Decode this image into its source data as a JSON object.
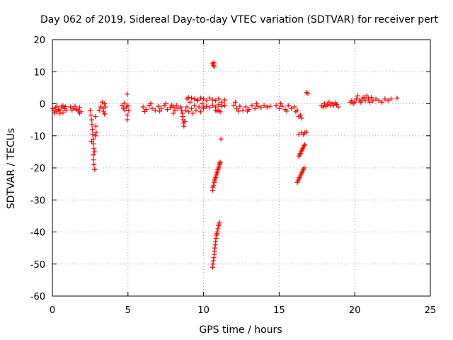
{
  "chart_data": {
    "type": "scatter",
    "title": "Day 062 of 2019, Sidereal Day-to-day VTEC variation (SDTVAR) for receiver pert",
    "xlabel": "GPS time / hours",
    "ylabel": "SDTVAR / TECUs",
    "xlim": [
      0,
      25
    ],
    "ylim": [
      -60,
      20
    ],
    "xticks": [
      0,
      5,
      10,
      15,
      20,
      25
    ],
    "yticks": [
      -60,
      -50,
      -40,
      -30,
      -20,
      -10,
      0,
      10,
      20
    ],
    "grid": true,
    "marker": "+",
    "color": "#ff0000",
    "series": [
      {
        "name": "SDTVAR",
        "points": [
          [
            0.0,
            -1.5
          ],
          [
            0.1,
            -2.0
          ],
          [
            0.2,
            -1.2
          ],
          [
            0.3,
            -2.5
          ],
          [
            0.4,
            -1.8
          ],
          [
            0.5,
            -2.2
          ],
          [
            0.6,
            -1.0
          ],
          [
            0.7,
            -2.8
          ],
          [
            0.8,
            -1.5
          ],
          [
            0.9,
            -2.0
          ],
          [
            0.3,
            -0.8
          ],
          [
            0.5,
            -3.0
          ],
          [
            0.7,
            -0.6
          ],
          [
            0.15,
            -2.9
          ],
          [
            0.85,
            -0.9
          ],
          [
            1.2,
            -1.0
          ],
          [
            1.3,
            -2.0
          ],
          [
            1.4,
            -1.5
          ],
          [
            1.5,
            -0.8
          ],
          [
            1.6,
            -1.8
          ],
          [
            1.7,
            -2.2
          ],
          [
            1.8,
            -1.2
          ],
          [
            1.9,
            -2.5
          ],
          [
            1.8,
            -3.0
          ],
          [
            2.5,
            -2.0
          ],
          [
            2.55,
            -3.5
          ],
          [
            2.6,
            -5.0
          ],
          [
            2.62,
            -6.5
          ],
          [
            2.65,
            -8.0
          ],
          [
            2.67,
            -9.5
          ],
          [
            2.7,
            -11.0
          ],
          [
            2.72,
            -12.5
          ],
          [
            2.75,
            -14.0
          ],
          [
            2.7,
            -16.0
          ],
          [
            2.72,
            -17.5
          ],
          [
            2.75,
            -19.0
          ],
          [
            2.8,
            -20.5
          ],
          [
            2.78,
            -15.0
          ],
          [
            2.6,
            -11.8
          ],
          [
            2.85,
            -10.0
          ],
          [
            2.9,
            -9.0
          ],
          [
            2.88,
            -7.0
          ],
          [
            2.85,
            -4.0
          ],
          [
            3.1,
            -2.0
          ],
          [
            3.2,
            -1.0
          ],
          [
            3.3,
            0.5
          ],
          [
            3.35,
            -1.5
          ],
          [
            3.4,
            -2.5
          ],
          [
            3.45,
            0.0
          ],
          [
            3.5,
            -1.0
          ],
          [
            3.45,
            -3.2
          ],
          [
            4.6,
            -0.5
          ],
          [
            4.7,
            -1.5
          ],
          [
            4.8,
            -2.0
          ],
          [
            4.9,
            -1.0
          ],
          [
            5.0,
            -0.5
          ],
          [
            5.05,
            -2.2
          ],
          [
            4.75,
            0.2
          ],
          [
            4.95,
            3.0
          ],
          [
            4.95,
            -3.5
          ],
          [
            4.95,
            -5.0
          ],
          [
            6.0,
            -1.0
          ],
          [
            6.2,
            -1.8
          ],
          [
            6.4,
            -0.5
          ],
          [
            6.6,
            -1.5
          ],
          [
            6.8,
            -2.0
          ],
          [
            7.0,
            -0.8
          ],
          [
            7.2,
            -1.5
          ],
          [
            7.4,
            -0.6
          ],
          [
            7.6,
            -1.8
          ],
          [
            7.8,
            -1.2
          ],
          [
            6.1,
            -2.4
          ],
          [
            6.5,
            0.0
          ],
          [
            7.1,
            -2.3
          ],
          [
            7.5,
            0.0
          ],
          [
            7.9,
            -0.4
          ],
          [
            8.0,
            -1.0
          ],
          [
            8.1,
            -2.0
          ],
          [
            8.2,
            -0.5
          ],
          [
            8.3,
            -1.5
          ],
          [
            8.0,
            -3.0
          ],
          [
            8.5,
            -1.0
          ],
          [
            8.55,
            -2.0
          ],
          [
            8.6,
            -3.0
          ],
          [
            8.62,
            -4.0
          ],
          [
            8.65,
            -5.0
          ],
          [
            8.67,
            -6.0
          ],
          [
            8.7,
            -7.0
          ],
          [
            8.75,
            -5.5
          ],
          [
            8.8,
            -2.0
          ],
          [
            8.9,
            -1.0
          ],
          [
            9.0,
            -2.5
          ],
          [
            9.1,
            0.5
          ],
          [
            9.2,
            -1.5
          ],
          [
            9.3,
            -3.0
          ],
          [
            9.4,
            -0.5
          ],
          [
            9.5,
            -2.0
          ],
          [
            9.6,
            1.0
          ],
          [
            9.7,
            -1.0
          ],
          [
            9.8,
            -2.5
          ],
          [
            9.9,
            0.0
          ],
          [
            10.0,
            -1.5
          ],
          [
            8.9,
            1.5
          ],
          [
            9.0,
            2.0
          ],
          [
            9.2,
            1.8
          ],
          [
            9.4,
            1.5
          ],
          [
            9.6,
            1.2
          ],
          [
            9.8,
            1.8
          ],
          [
            10.0,
            1.5
          ],
          [
            10.2,
            1.0
          ],
          [
            10.4,
            1.8
          ],
          [
            10.6,
            1.2
          ],
          [
            10.8,
            1.0
          ],
          [
            11.0,
            1.5
          ],
          [
            11.2,
            0.5
          ],
          [
            11.4,
            1.2
          ],
          [
            10.0,
            -1.0
          ],
          [
            10.2,
            -0.8
          ],
          [
            10.4,
            -1.2
          ],
          [
            10.6,
            -0.5
          ],
          [
            10.8,
            -1.0
          ],
          [
            11.0,
            -0.3
          ],
          [
            11.2,
            -0.8
          ],
          [
            11.4,
            -0.5
          ],
          [
            10.8,
            -2.0
          ],
          [
            10.9,
            -2.3
          ],
          [
            11.0,
            -2.0
          ],
          [
            11.1,
            -2.5
          ],
          [
            10.6,
            12.5
          ],
          [
            10.65,
            12.0
          ],
          [
            10.7,
            11.5
          ],
          [
            10.68,
            12.8
          ],
          [
            11.15,
            -11.0
          ],
          [
            10.6,
            -27.0
          ],
          [
            10.62,
            -26.0
          ],
          [
            10.65,
            -25.5
          ],
          [
            10.7,
            -24.5
          ],
          [
            10.72,
            -24.0
          ],
          [
            10.75,
            -23.5
          ],
          [
            10.8,
            -23.0
          ],
          [
            10.82,
            -22.5
          ],
          [
            10.85,
            -22.0
          ],
          [
            10.9,
            -21.5
          ],
          [
            10.92,
            -21.0
          ],
          [
            10.95,
            -20.5
          ],
          [
            11.0,
            -20.0
          ],
          [
            11.02,
            -19.5
          ],
          [
            11.05,
            -19.0
          ],
          [
            11.08,
            -18.5
          ],
          [
            11.1,
            -18.2
          ],
          [
            10.6,
            -51.0
          ],
          [
            10.62,
            -50.0
          ],
          [
            10.65,
            -49.0
          ],
          [
            10.68,
            -48.0
          ],
          [
            10.7,
            -47.0
          ],
          [
            10.72,
            -46.0
          ],
          [
            10.75,
            -45.0
          ],
          [
            10.78,
            -44.0
          ],
          [
            10.8,
            -43.0
          ],
          [
            10.82,
            -42.0
          ],
          [
            10.85,
            -41.0
          ],
          [
            10.88,
            -40.5
          ],
          [
            10.9,
            -40.0
          ],
          [
            10.95,
            -39.0
          ],
          [
            11.0,
            -38.0
          ],
          [
            11.02,
            -37.5
          ],
          [
            11.05,
            -37.0
          ],
          [
            12.0,
            -0.5
          ],
          [
            12.2,
            -1.5
          ],
          [
            12.4,
            -0.8
          ],
          [
            12.6,
            -2.0
          ],
          [
            12.8,
            -1.0
          ],
          [
            13.0,
            -1.8
          ],
          [
            13.2,
            -0.5
          ],
          [
            13.4,
            -1.5
          ],
          [
            13.6,
            -0.8
          ],
          [
            13.8,
            -1.2
          ],
          [
            14.0,
            -0.5
          ],
          [
            14.2,
            -1.0
          ],
          [
            14.4,
            -0.8
          ],
          [
            12.1,
            0.5
          ],
          [
            12.3,
            -2.3
          ],
          [
            12.9,
            -2.3
          ],
          [
            13.5,
            0.0
          ],
          [
            14.8,
            -0.5
          ],
          [
            15.0,
            -1.5
          ],
          [
            15.2,
            -0.8
          ],
          [
            15.4,
            -1.8
          ],
          [
            15.6,
            -0.5
          ],
          [
            15.8,
            -1.5
          ],
          [
            16.0,
            -1.0
          ],
          [
            16.2,
            -2.0
          ],
          [
            15.1,
            0.0
          ],
          [
            15.5,
            -2.3
          ],
          [
            16.1,
            -2.5
          ],
          [
            16.3,
            -4.0
          ],
          [
            16.4,
            -3.5
          ],
          [
            16.5,
            -4.5
          ],
          [
            16.8,
            3.5
          ],
          [
            16.9,
            3.2
          ],
          [
            16.3,
            -9.5
          ],
          [
            16.5,
            -9.0
          ],
          [
            16.6,
            -9.5
          ],
          [
            16.7,
            -9.0
          ],
          [
            16.8,
            -8.8
          ],
          [
            16.3,
            -16.5
          ],
          [
            16.35,
            -16.0
          ],
          [
            16.4,
            -15.5
          ],
          [
            16.45,
            -15.0
          ],
          [
            16.5,
            -14.5
          ],
          [
            16.55,
            -14.0
          ],
          [
            16.6,
            -13.5
          ],
          [
            16.65,
            -13.0
          ],
          [
            16.7,
            -12.8
          ],
          [
            16.2,
            -24.5
          ],
          [
            16.25,
            -24.0
          ],
          [
            16.3,
            -23.5
          ],
          [
            16.35,
            -23.0
          ],
          [
            16.4,
            -22.5
          ],
          [
            16.45,
            -22.0
          ],
          [
            16.5,
            -21.5
          ],
          [
            16.55,
            -21.0
          ],
          [
            16.6,
            -20.5
          ],
          [
            16.65,
            -20.0
          ],
          [
            17.8,
            -0.5
          ],
          [
            17.9,
            -1.0
          ],
          [
            18.0,
            0.0
          ],
          [
            18.1,
            -0.8
          ],
          [
            18.2,
            -0.3
          ],
          [
            18.3,
            0.5
          ],
          [
            18.4,
            -0.5
          ],
          [
            18.5,
            0.0
          ],
          [
            18.6,
            -0.5
          ],
          [
            18.7,
            0.3
          ],
          [
            18.9,
            -1.0
          ],
          [
            18.8,
            -0.2
          ],
          [
            19.7,
            0.5
          ],
          [
            19.8,
            1.0
          ],
          [
            19.9,
            0.0
          ],
          [
            20.0,
            0.5
          ],
          [
            20.1,
            1.5
          ],
          [
            20.2,
            2.5
          ],
          [
            20.3,
            1.0
          ],
          [
            20.4,
            0.5
          ],
          [
            20.5,
            1.5
          ],
          [
            20.6,
            2.0
          ],
          [
            20.7,
            1.0
          ],
          [
            20.8,
            2.5
          ],
          [
            20.9,
            1.5
          ],
          [
            21.0,
            0.5
          ],
          [
            21.1,
            2.0
          ],
          [
            21.2,
            1.0
          ],
          [
            21.4,
            1.5
          ],
          [
            21.6,
            1.0
          ],
          [
            21.8,
            0.5
          ],
          [
            22.0,
            1.5
          ],
          [
            22.2,
            1.0
          ],
          [
            22.4,
            1.5
          ],
          [
            22.8,
            1.8
          ]
        ]
      }
    ]
  }
}
